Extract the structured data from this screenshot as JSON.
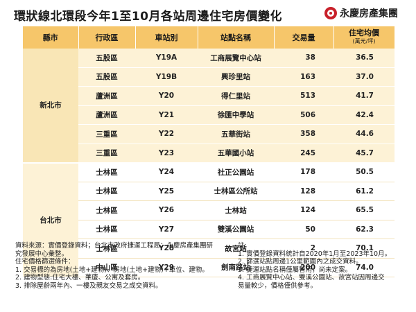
{
  "title": "環狀線北環段今年1至10月各站周邊住宅房價變化",
  "brand": {
    "name": "永慶房產集團",
    "logo_icon": "yungching-logo-icon",
    "color": "#c8202a"
  },
  "table": {
    "headers": {
      "county": "縣市",
      "district": "行政區",
      "code": "車站別",
      "station": "站點名稱",
      "volume": "交易量",
      "price": "住宅均價",
      "price_unit": "(萬元/坪)"
    },
    "groups": [
      {
        "county": "新北市",
        "rows": [
          {
            "district": "五股區",
            "code": "Y19A",
            "station": "工商展覽中心站",
            "volume": "38",
            "price": "36.5"
          },
          {
            "district": "五股區",
            "code": "Y19B",
            "station": "興珍里站",
            "volume": "163",
            "price": "37.0"
          },
          {
            "district": "蘆洲區",
            "code": "Y20",
            "station": "得仁里站",
            "volume": "513",
            "price": "41.7"
          },
          {
            "district": "蘆洲區",
            "code": "Y21",
            "station": "徐匯中學站",
            "volume": "506",
            "price": "42.4"
          },
          {
            "district": "三重區",
            "code": "Y22",
            "station": "五華街站",
            "volume": "358",
            "price": "44.6"
          },
          {
            "district": "三重區",
            "code": "Y23",
            "station": "五華國小站",
            "volume": "245",
            "price": "45.7"
          }
        ]
      },
      {
        "county": "台北市",
        "rows": [
          {
            "district": "士林區",
            "code": "Y24",
            "station": "社正公園站",
            "volume": "178",
            "price": "50.5"
          },
          {
            "district": "士林區",
            "code": "Y25",
            "station": "士林區公所站",
            "volume": "128",
            "price": "61.2"
          },
          {
            "district": "士林區",
            "code": "Y26",
            "station": "士林站",
            "volume": "124",
            "price": "65.5"
          },
          {
            "district": "士林區",
            "code": "Y27",
            "station": "雙溪公園站",
            "volume": "50",
            "price": "62.3"
          },
          {
            "district": "士林區",
            "code": "Y28",
            "station": "故宮站",
            "volume": "2",
            "price": "70.1"
          },
          {
            "district": "中山區",
            "code": "Y29",
            "station": "劍南路站",
            "volume": "200",
            "price": "74.0"
          }
        ]
      }
    ]
  },
  "notes_left": [
    "資料來源：實價登錄資料；台北市政府捷運工程局；永慶房產集團研",
    "究發展中心彙整。",
    "住宅價格篩選條件：",
    "1. 交易標的為房地(土地+建物)、房地(土地+建物)+車位、建物。",
    "2. 建物型態:住宅大樓、華廈、公寓及套房。",
    "3. 排除屋齡兩年內、一樓及親友交易之成交資料。"
  ],
  "notes_right": [
    "註:",
    "1. 實價登錄資料統計自2020年1月至2023年10月。",
    "2. 篩選站點周邊1公里範圍內之成交資料。",
    "3. 捷運站點名稱僅屬暫用，尚未定案。",
    "4. 工商展覽中心站、雙溪公園站、故宮站因周邊交",
    "易量較少，價格僅供參考。"
  ]
}
